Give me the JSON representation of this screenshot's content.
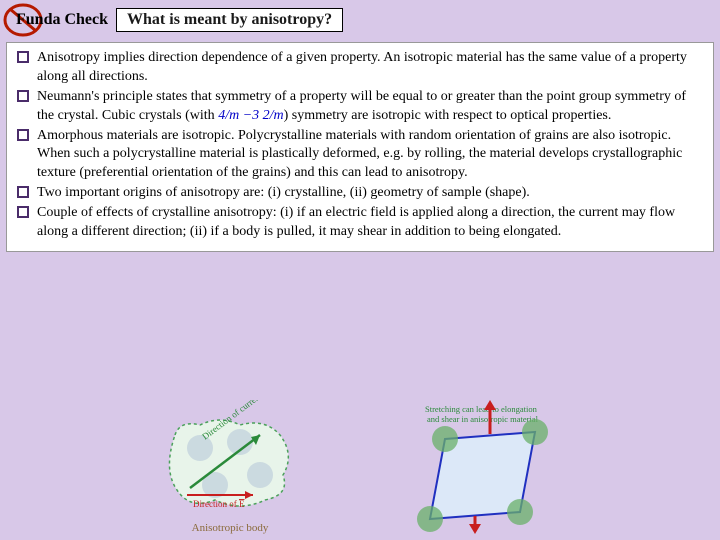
{
  "header": {
    "funda_label": "Funda Check",
    "question": "What is meant by anisotropy?",
    "icon_colors": {
      "ring": "#b51a00",
      "prohibit": "#b51a00"
    }
  },
  "content": {
    "background": "#ffffff",
    "bullet_fill": "#4a2c6a",
    "items": [
      {
        "text": "Anisotropy implies direction dependence of a given property. An isotropic material has the same value of a property along all directions."
      },
      {
        "pre": "Neumann's principle states that symmetry of a property will be equal to or greater than the point group symmetry of the crystal. Cubic crystals (with ",
        "math": "4/m −3 2/m",
        "post": ") symmetry are isotropic with respect to optical properties."
      },
      {
        "text": "Amorphous materials are isotropic. Polycrystalline materials with random orientation of grains are also isotropic. When such a polycrystalline material is plastically deformed, e.g. by rolling, the material develops crystallographic texture (preferential orientation of the grains) and this can lead to anisotropy."
      },
      {
        "text": "Two important origins of anisotropy are: (i) crystalline, (ii) geometry of sample (shape)."
      },
      {
        "text": "Couple of effects of crystalline anisotropy: (i) if an electric field is applied along a direction, the current may flow along a different direction; (ii) if a body is pulled, it may shear in addition to being elongated."
      }
    ]
  },
  "figures": {
    "left": {
      "label": "Anisotropic body",
      "j_arrow": {
        "color": "#2a8a3a",
        "label": "Direction of current (J)"
      },
      "e_arrow": {
        "color": "#c81e1e",
        "label": "Direction of E"
      },
      "e_bar": "E",
      "body_border": "#4aa05a",
      "body_fill": "#e8f4ea",
      "atom_fill": "#b8c8d8"
    },
    "right": {
      "caption1": "Stretching can lead to elongation",
      "caption2": "and shear in anisotropic material",
      "cell_border": "#2030c0",
      "cell_fill": "#dce8f8",
      "arrow_color": "#c81e1e",
      "atom_fill": "#6ab06a"
    }
  },
  "page_bg": "#d8c8e8"
}
